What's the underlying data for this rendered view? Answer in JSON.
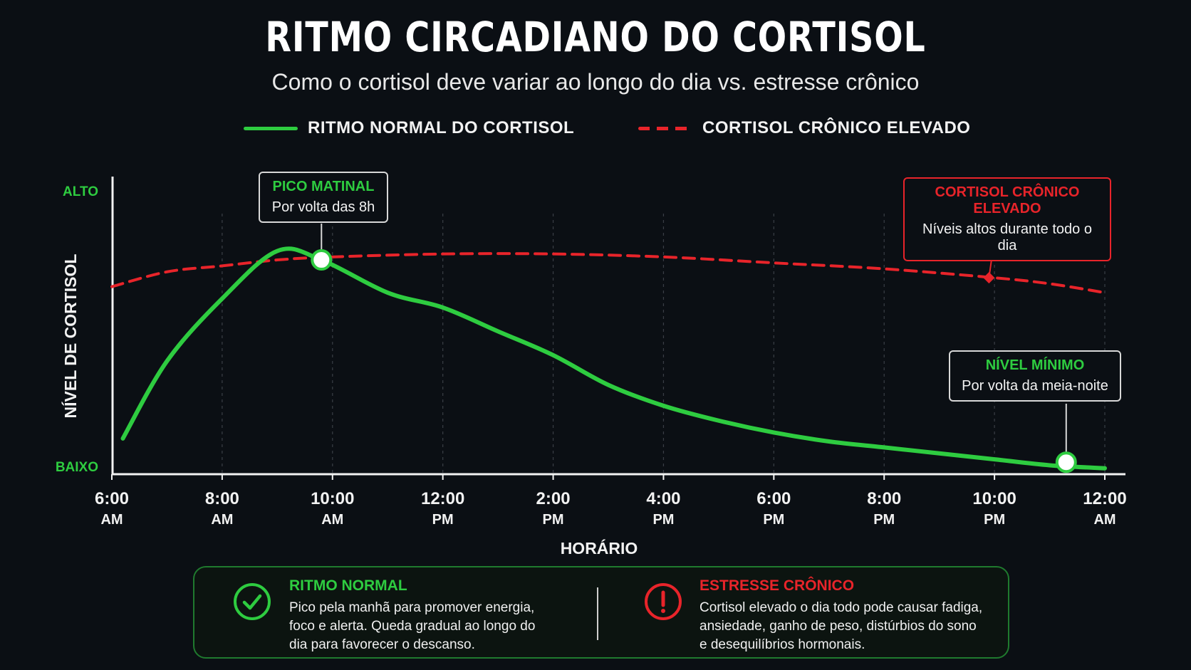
{
  "title": "RITMO CIRCADIANO DO CORTISOL",
  "subtitle": "Como o cortisol deve variar ao longo do dia vs. estresse crônico",
  "colors": {
    "normal": "#2ecc40",
    "chronic": "#e8242a",
    "background": "#0b0f14"
  },
  "legend": {
    "normal_label": "RITMO NORMAL DO CORTISOL",
    "chronic_label": "CORTISOL CRÔNICO ELEVADO"
  },
  "callouts": {
    "peak": {
      "title": "PICO MATINAL",
      "text": "Por volta das 8h"
    },
    "chronic": {
      "title": "CORTISOL CRÔNICO ELEVADO",
      "text": "Níveis altos durante todo o dia"
    },
    "minimum": {
      "title": "NÍVEL MÍNIMO",
      "text": "Por volta da meia-noite"
    }
  },
  "chart_data": {
    "type": "line",
    "xlabel": "HORÁRIO",
    "ylabel": "NÍVEL DE CORTISOL",
    "y_tick_labels": {
      "high": "ALTO",
      "low": "BAIXO"
    },
    "ylim": [
      0,
      100
    ],
    "xlim": [
      6,
      24
    ],
    "x_ticks": [
      {
        "value": 6,
        "time": "6:00",
        "ampm": "AM"
      },
      {
        "value": 8,
        "time": "8:00",
        "ampm": "AM"
      },
      {
        "value": 10,
        "time": "10:00",
        "ampm": "AM"
      },
      {
        "value": 12,
        "time": "12:00",
        "ampm": "PM"
      },
      {
        "value": 14,
        "time": "2:00",
        "ampm": "PM"
      },
      {
        "value": 16,
        "time": "4:00",
        "ampm": "PM"
      },
      {
        "value": 18,
        "time": "6:00",
        "ampm": "PM"
      },
      {
        "value": 20,
        "time": "8:00",
        "ampm": "PM"
      },
      {
        "value": 22,
        "time": "10:00",
        "ampm": "PM"
      },
      {
        "value": 24,
        "time": "12:00",
        "ampm": "AM"
      }
    ],
    "grid": "vertical-dashed",
    "series": [
      {
        "name": "RITMO NORMAL DO CORTISOL",
        "style": "solid",
        "points": [
          [
            6.2,
            12
          ],
          [
            7,
            38
          ],
          [
            8,
            59
          ],
          [
            9,
            75
          ],
          [
            9.8,
            72
          ],
          [
            11,
            61
          ],
          [
            12,
            56
          ],
          [
            13,
            48
          ],
          [
            14,
            40
          ],
          [
            15,
            30
          ],
          [
            16,
            23
          ],
          [
            17,
            18
          ],
          [
            18,
            14
          ],
          [
            19,
            11
          ],
          [
            20,
            9
          ],
          [
            21,
            7
          ],
          [
            22,
            5
          ],
          [
            23,
            3
          ],
          [
            24,
            2
          ]
        ],
        "markers": [
          [
            9.8,
            72
          ],
          [
            23.3,
            4
          ]
        ]
      },
      {
        "name": "CORTISOL CRÔNICO ELEVADO",
        "style": "dashed",
        "points": [
          [
            6,
            63
          ],
          [
            7,
            68
          ],
          [
            8,
            70
          ],
          [
            9,
            72
          ],
          [
            10,
            73
          ],
          [
            12,
            74
          ],
          [
            14,
            74
          ],
          [
            16,
            73
          ],
          [
            18,
            71
          ],
          [
            20,
            69
          ],
          [
            22,
            66
          ],
          [
            23,
            64
          ],
          [
            24,
            61
          ]
        ],
        "markers": [
          [
            21.9,
            66
          ]
        ]
      }
    ]
  },
  "info": {
    "normal": {
      "title": "RITMO NORMAL",
      "lines": [
        "Pico pela manhã para promover energia,",
        "foco e alerta. Queda gradual ao longo do",
        "dia para favorecer o descanso."
      ]
    },
    "chronic": {
      "title": "ESTRESSE CRÔNICO",
      "lines": [
        "Cortisol elevado o dia todo pode causar fadiga,",
        "ansiedade, ganho de peso, distúrbios do sono",
        "e desequilíbrios hormonais."
      ]
    }
  }
}
